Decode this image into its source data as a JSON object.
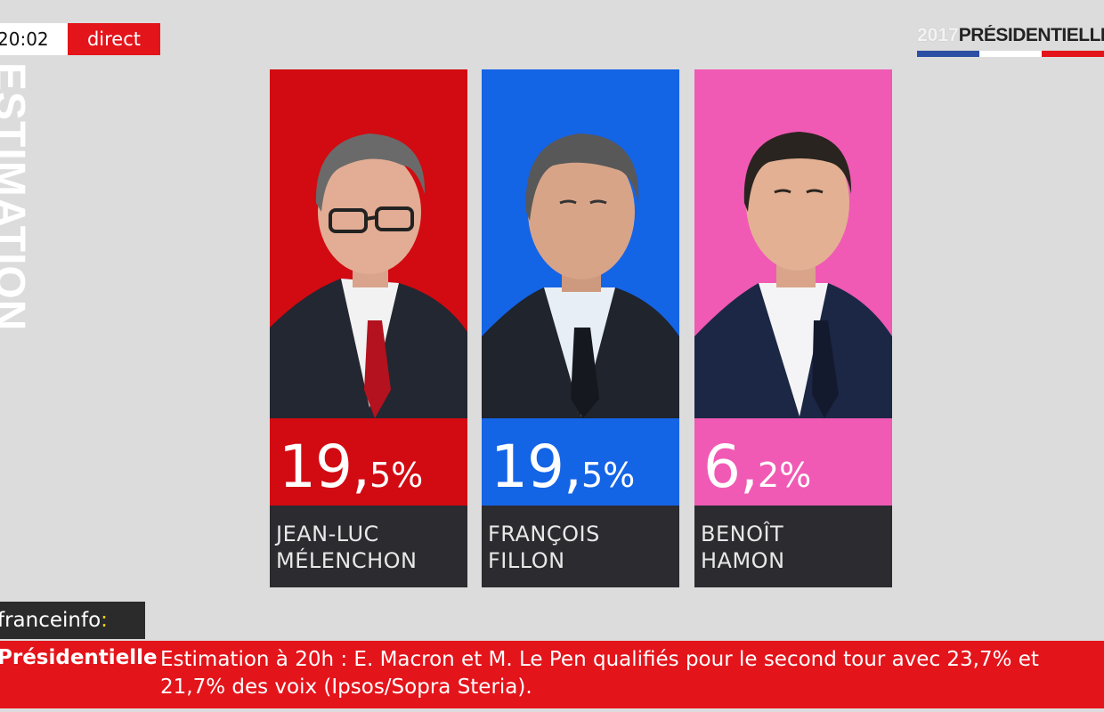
{
  "header": {
    "clock": "20:02",
    "live_label": "direct",
    "side_label": "ESTIMATION",
    "brand_year": "2017",
    "brand_word": "PRÉSIDENTIELLE",
    "flag_colors": [
      "#2a4fa3",
      "#ffffff",
      "#e4141b"
    ]
  },
  "candidates": [
    {
      "percent_int": "19",
      "percent_dec": "5%",
      "first_name": "JEAN-LUC",
      "last_name": "MÉLENCHON",
      "color": "#d20a12",
      "icon": "portrait-melenchon"
    },
    {
      "percent_int": "19",
      "percent_dec": "5%",
      "first_name": "FRANÇOIS",
      "last_name": "FILLON",
      "color": "#1464e6",
      "icon": "portrait-fillon"
    },
    {
      "percent_int": "6",
      "percent_dec": "2%",
      "first_name": "BENOÎT",
      "last_name": "HAMON",
      "color": "#f05ab4",
      "icon": "portrait-hamon"
    }
  ],
  "footer": {
    "channel_name": "franceinfo",
    "channel_colon": ":",
    "ticker_tag": "Présidentielle",
    "ticker_text": "Estimation à 20h : E. Macron et M. Le Pen qualifiés pour le second tour avec 23,7% et 21,7% des voix (Ipsos/Sopra Steria)."
  }
}
